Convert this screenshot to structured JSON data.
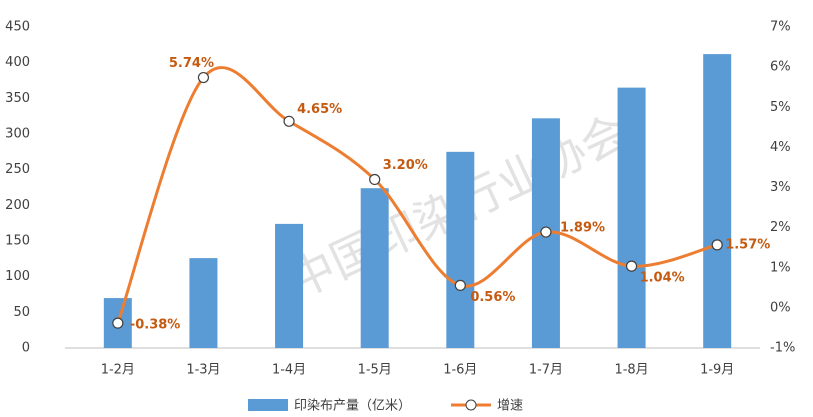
{
  "chart_data": {
    "type": "bar-line",
    "categories": [
      "1-2月",
      "1-3月",
      "1-4月",
      "1-5月",
      "1-6月",
      "1-7月",
      "1-8月",
      "1-9月"
    ],
    "series": [
      {
        "name": "印染布产量（亿米）",
        "type": "bar",
        "color": "#5b9bd5",
        "values": [
          70,
          126,
          174,
          224,
          275,
          322,
          365,
          412
        ]
      },
      {
        "name": "增速",
        "type": "line",
        "axis": "y2",
        "color": "#ed7d31",
        "values": [
          -0.38,
          5.74,
          4.65,
          3.2,
          0.56,
          1.89,
          1.04,
          1.57
        ],
        "value_labels": [
          "-0.38%",
          "5.74%",
          "4.65%",
          "3.20%",
          "0.56%",
          "1.89%",
          "1.04%",
          "1.57%"
        ]
      }
    ],
    "ylim": [
      0,
      450
    ],
    "yticks": [
      0,
      50,
      100,
      150,
      200,
      250,
      300,
      350,
      400,
      450
    ],
    "y2lim": [
      -1,
      7
    ],
    "y2ticks": [
      {
        "value": -1,
        "label": "-1%"
      },
      {
        "value": 0,
        "label": "0%"
      },
      {
        "value": 1,
        "label": "1%"
      },
      {
        "value": 2,
        "label": "2%"
      },
      {
        "value": 3,
        "label": "3%"
      },
      {
        "value": 4,
        "label": "4%"
      },
      {
        "value": 5,
        "label": "5%"
      },
      {
        "value": 6,
        "label": "6%"
      },
      {
        "value": 7,
        "label": "7%"
      }
    ],
    "watermark": "中国印染行业协会",
    "legend": "bottom"
  }
}
